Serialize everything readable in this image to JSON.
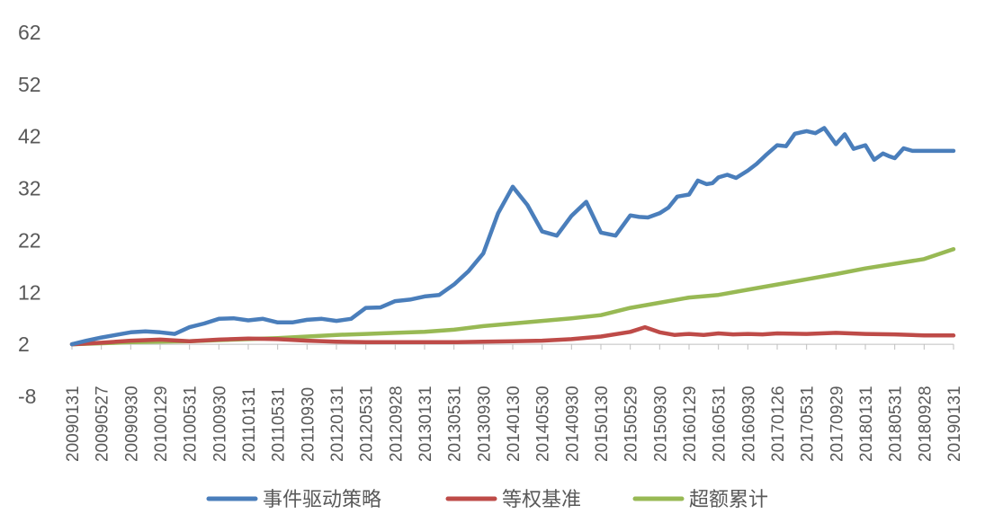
{
  "chart_data": {
    "type": "line",
    "title": "",
    "xlabel": "",
    "ylabel": "",
    "ylim": [
      -8,
      62
    ],
    "yticks": [
      "62",
      "52",
      "42",
      "32",
      "22",
      "12",
      "2",
      "-8"
    ],
    "grid": false,
    "legend_position": "bottom",
    "x_tick_labels": [
      "20090131",
      "20090527",
      "20090930",
      "20100129",
      "20100531",
      "20100930",
      "20110131",
      "20110531",
      "20110930",
      "20120131",
      "20120531",
      "20120928",
      "20130131",
      "20130531",
      "20130930",
      "20140130",
      "20140530",
      "20140930",
      "20150130",
      "20150529",
      "20150930",
      "20160129",
      "20160531",
      "20160930",
      "20170126",
      "20170531",
      "20170929",
      "20180131",
      "20180531",
      "20180928",
      "20190131"
    ],
    "series": [
      {
        "name": "事件驱动策略",
        "color": "#4a7ebb",
        "x": [
          0,
          0.5,
          1,
          1.5,
          2,
          2.5,
          3,
          3.5,
          4,
          4.5,
          5,
          5.5,
          6,
          6.5,
          7,
          7.5,
          8,
          8.5,
          9,
          9.5,
          10,
          10.5,
          11,
          11.5,
          12,
          12.5,
          13,
          13.5,
          14,
          14.5,
          15,
          15.5,
          16,
          16.5,
          17,
          17.5,
          18,
          18.5,
          19,
          19.3,
          19.6,
          20,
          20.3,
          20.6,
          21,
          21.3,
          21.6,
          21.8,
          22,
          22.3,
          22.6,
          23,
          23.3,
          23.6,
          24,
          24.3,
          24.6,
          25,
          25.3,
          25.6,
          26,
          26.3,
          26.6,
          27,
          27.3,
          27.6,
          27.8,
          28,
          28.3,
          28.6,
          28.9,
          29.2,
          29.5,
          29.8,
          30
        ],
        "values": [
          2,
          2.7,
          3.3,
          3.8,
          4.3,
          4.5,
          4.3,
          4.0,
          5.3,
          6.0,
          6.9,
          7.0,
          6.6,
          6.9,
          6.2,
          6.2,
          6.7,
          6.9,
          6.5,
          6.9,
          9.0,
          9.1,
          10.3,
          10.6,
          11.2,
          11.5,
          13.5,
          16.1,
          19.5,
          27.2,
          32.3,
          28.8,
          23.7,
          22.9,
          26.7,
          29.4,
          23.5,
          22.9,
          26.8,
          26.5,
          26.4,
          27.2,
          28.3,
          30.4,
          30.8,
          33.5,
          32.8,
          33.0,
          34.1,
          34.6,
          34.0,
          35.4,
          36.7,
          38.3,
          40.3,
          40.1,
          42.5,
          43.0,
          42.6,
          43.6,
          40.5,
          42.4,
          39.6,
          40.3,
          37.5,
          38.7,
          38.2,
          37.8,
          39.7,
          39.2,
          39.2,
          39.2,
          39.2,
          39.2,
          39.2
        ]
      },
      {
        "name": "等权基准",
        "color": "#be4b48",
        "x": [
          0,
          1,
          2,
          3,
          4,
          5,
          6,
          7,
          8,
          9,
          10,
          11,
          12,
          13,
          14,
          15,
          16,
          17,
          18,
          19,
          19.5,
          20,
          20.5,
          21,
          21.5,
          22,
          22.5,
          23,
          23.5,
          24,
          25,
          26,
          27,
          28,
          29,
          30
        ],
        "values": [
          2,
          2.3,
          2.7,
          2.9,
          2.6,
          2.9,
          3.1,
          3.0,
          2.7,
          2.5,
          2.4,
          2.4,
          2.4,
          2.4,
          2.5,
          2.6,
          2.7,
          3.0,
          3.5,
          4.4,
          5.3,
          4.3,
          3.8,
          4.0,
          3.8,
          4.1,
          3.9,
          4.0,
          3.9,
          4.1,
          4.0,
          4.2,
          4.0,
          3.9,
          3.7,
          3.7
        ]
      },
      {
        "name": "超额累计",
        "color": "#98b954",
        "x": [
          0,
          1,
          2,
          3,
          4,
          5,
          6,
          7,
          8,
          9,
          10,
          11,
          12,
          13,
          14,
          15,
          16,
          17,
          18,
          19,
          20,
          21,
          22,
          23,
          24,
          25,
          26,
          27,
          28,
          29,
          30
        ],
        "values": [
          2,
          2.2,
          2.4,
          2.5,
          2.6,
          2.8,
          3.0,
          3.2,
          3.5,
          3.8,
          4.0,
          4.2,
          4.4,
          4.8,
          5.5,
          6.0,
          6.5,
          7.0,
          7.6,
          9.0,
          10.0,
          11.0,
          11.5,
          12.5,
          13.5,
          14.5,
          15.5,
          16.6,
          17.5,
          18.4,
          20.3
        ]
      }
    ]
  }
}
